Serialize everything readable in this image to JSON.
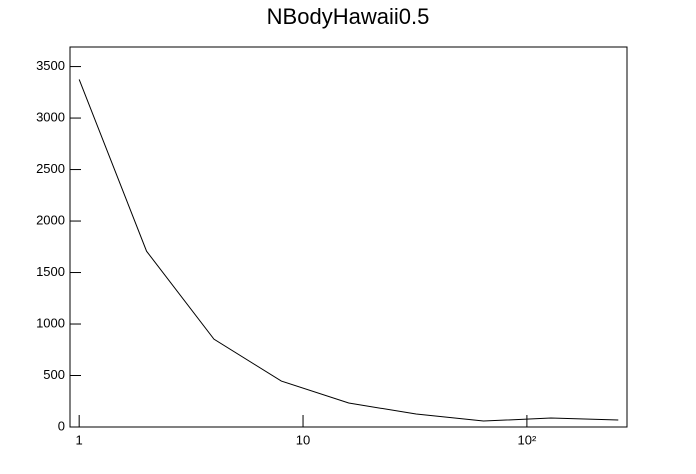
{
  "chart_data": {
    "type": "line",
    "title": "NBodyHawaii0.5",
    "x": [
      1,
      2,
      4,
      8,
      16,
      32,
      64,
      128,
      256
    ],
    "series": [
      {
        "name": "NBodyHawaii0.5",
        "color": "#000000",
        "values": [
          3375,
          1707,
          853,
          446,
          233,
          126,
          58,
          87,
          68
        ]
      }
    ],
    "xlim": [
      0.91,
      280
    ],
    "xlog": true,
    "xticks": [
      1,
      10,
      {
        "value": 100,
        "label": "10²"
      }
    ],
    "ylim": [
      0,
      3690
    ],
    "yticks": [
      0,
      500,
      1000,
      1500,
      2000,
      2500,
      3000,
      3500
    ],
    "grid": false
  }
}
